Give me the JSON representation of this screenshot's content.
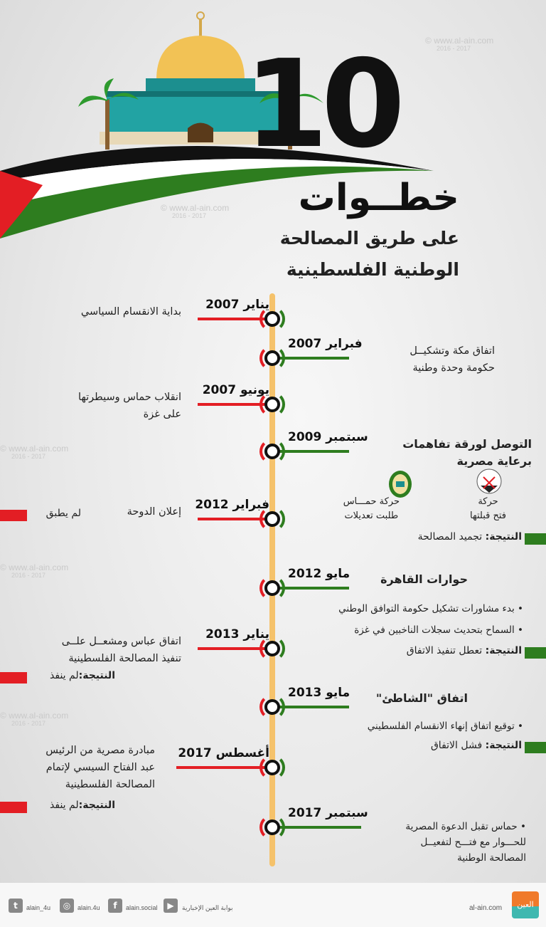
{
  "watermark": {
    "url": "www.al-ain.com",
    "years": "2016 - 2017"
  },
  "header": {
    "number": "10",
    "title": "خطــوات",
    "subtitle_line1": "على طريق المصالحة",
    "subtitle_line2": "الوطنية الفلسطينية"
  },
  "colors": {
    "red": "#e31e24",
    "green": "#2e7d1f",
    "black": "#111111",
    "timeline": "#f5c26b"
  },
  "events": [
    {
      "date": "يناير 2007",
      "side": "left",
      "lines": [
        "بداية الانقسام السياسي"
      ]
    },
    {
      "date": "فبراير 2007",
      "side": "right",
      "lines": [
        "اتفاق مكة وتشكيــل",
        "حكومة وحدة وطنية"
      ]
    },
    {
      "date": "يونيو 2007",
      "side": "left",
      "lines": [
        "انقلاب حماس وسيطرتها",
        "على غزة"
      ]
    },
    {
      "date": "سبتمبر 2009",
      "side": "right",
      "lines": [
        "التوصل لورقة تفاهمات",
        "برعاية مصرية"
      ]
    },
    {
      "date": "فبراير 2012",
      "side": "left",
      "lines": [
        "إعلان الدوحة"
      ]
    },
    {
      "date": "مايو 2012",
      "side": "right",
      "lines": [
        "حوارات القاهرة"
      ]
    },
    {
      "date": "يناير 2013",
      "side": "left",
      "lines": [
        "اتفاق عباس ومشعــل علــى",
        "تنفيذ المصالحة الفلسطينية"
      ]
    },
    {
      "date": "مايو 2013",
      "side": "right",
      "lines": [
        "اتفاق \"الشاطئ\""
      ]
    },
    {
      "date": "أغسطس 2017",
      "side": "left",
      "lines": [
        "مبادرة مصرية من الرئيس",
        "عبد الفتاح السيسي لإتمام",
        "المصالحة الفلسطينية"
      ]
    },
    {
      "date": "سبتمبر 2017",
      "side": "right",
      "lines": []
    }
  ],
  "parties": {
    "fatah": {
      "line1": "حركة",
      "line2": "فتح قبلتها",
      "icon": "fatah-emblem"
    },
    "hamas": {
      "line1": "حركة حمـــاس",
      "line2": "طلبت تعديلات",
      "icon": "hamas-emblem"
    }
  },
  "doha_result": "لم يطبق",
  "results": {
    "label": "النتيجة:",
    "r2009": "تجميد المصالحة",
    "r2012": "تعطل تنفيذ الاتفاق",
    "r2013a": "لم ينفذ",
    "r2013b": "فشل الاتفاق",
    "r2017": "لم ينفذ"
  },
  "bullets": {
    "cairo": [
      "بدء مشاورات تشكيل حكومة التوافق الوطني",
      "السماح بتحديث سجلات الناخبين في غزة"
    ],
    "shati": [
      "توقيع اتفاق إنهاء الانقسام الفلسطيني"
    ],
    "sep2017": [
      "حماس تقبل الدعوة المصرية",
      "للحـــوار مع فتـــح لتفعيــل",
      "المصالحة الوطنية"
    ]
  },
  "footer": {
    "twitter": "alain_4u",
    "instagram": "alain.4u",
    "facebook": "alain.social",
    "youtube": "بوابة العين الإخبارية",
    "site": "al-ain.com",
    "logo_text": "العين"
  }
}
